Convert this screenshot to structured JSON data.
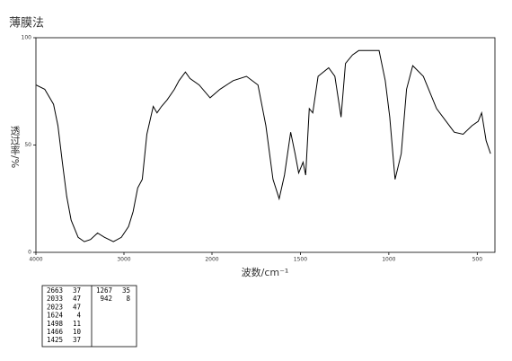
{
  "chart_data": {
    "type": "line",
    "title": "薄膜法",
    "x_label": "波数/cm⁻¹",
    "y_label": "透过率/%",
    "xlim": [
      4000,
      400
    ],
    "x_scale_break": 2000,
    "ylim": [
      0,
      100
    ],
    "xticks": [
      4000,
      3000,
      2000,
      1500,
      1000,
      500
    ],
    "yticks": [
      0,
      50,
      100
    ],
    "series": [
      {
        "color": "#000000",
        "x": [
          4000,
          3900,
          3800,
          3750,
          3700,
          3650,
          3600,
          3520,
          3450,
          3380,
          3300,
          3220,
          3120,
          3030,
          2948,
          2896,
          2844,
          2792,
          2740,
          2667,
          2625,
          2573,
          2510,
          2427,
          2375,
          2302,
          2250,
          2146,
          2021,
          1955,
          1880,
          1805,
          1740,
          1695,
          1655,
          1620,
          1590,
          1555,
          1530,
          1510,
          1485,
          1470,
          1450,
          1430,
          1400,
          1340,
          1305,
          1270,
          1245,
          1205,
          1170,
          1055,
          1020,
          995,
          965,
          930,
          900,
          865,
          805,
          730,
          630,
          580,
          530,
          495,
          475,
          450,
          425
        ],
        "values": [
          78,
          76,
          69,
          59,
          42,
          26,
          15,
          7,
          5,
          6,
          9,
          7,
          5,
          7,
          12,
          19,
          30,
          34,
          55,
          68,
          65,
          68,
          71,
          76,
          80,
          84,
          81,
          78,
          72,
          76,
          80,
          82,
          78,
          59,
          34,
          25,
          36,
          56,
          46,
          37,
          42,
          36,
          67,
          65,
          82,
          86,
          82,
          63,
          88,
          92,
          94,
          94,
          80,
          63,
          34,
          46,
          76,
          87,
          82,
          67,
          56,
          55,
          59,
          61,
          65,
          52,
          46
        ]
      }
    ]
  },
  "peak_table": {
    "left": [
      [
        2663,
        37
      ],
      [
        2033,
        47
      ],
      [
        2023,
        47
      ],
      [
        1624,
        4
      ],
      [
        1498,
        11
      ],
      [
        1466,
        10
      ],
      [
        1425,
        37
      ]
    ],
    "right": [
      [
        1267,
        35
      ],
      [
        942,
        8
      ]
    ]
  }
}
